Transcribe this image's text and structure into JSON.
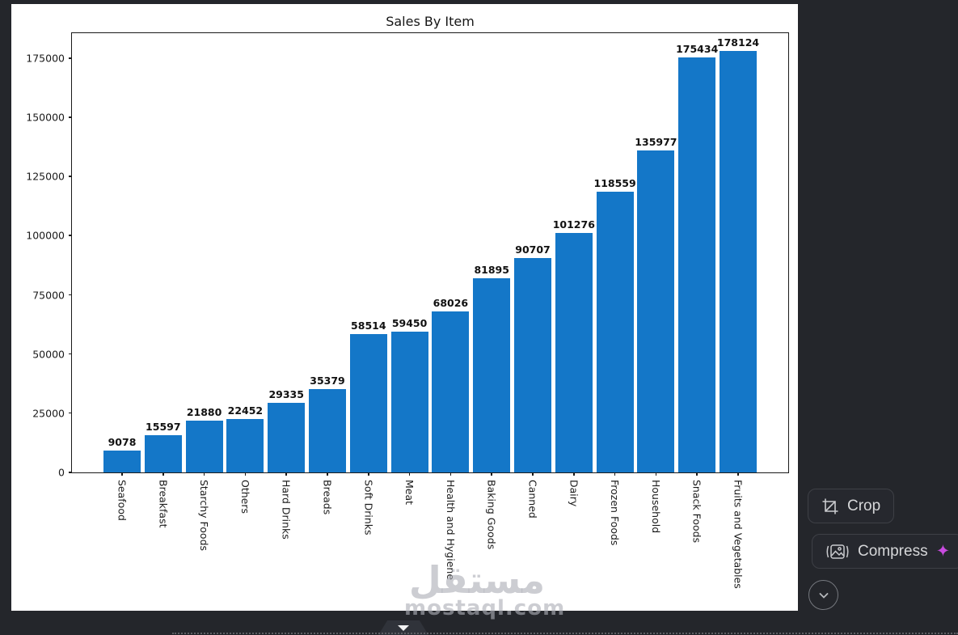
{
  "chart_data": {
    "type": "bar",
    "title": "Sales By Item",
    "categories": [
      "Seafood",
      "Breakfast",
      "Starchy Foods",
      "Others",
      "Hard Drinks",
      "Breads",
      "Soft Drinks",
      "Meat",
      "Health and Hygiene",
      "Baking Goods",
      "Canned",
      "Dairy",
      "Frozen Foods",
      "Household",
      "Snack Foods",
      "Fruits and Vegetables"
    ],
    "values": [
      9078,
      15597,
      21880,
      22452,
      29335,
      35379,
      58514,
      59450,
      68026,
      81895,
      90707,
      101276,
      118559,
      135977,
      175434,
      178124
    ],
    "value_labels": [
      "9078",
      "15597",
      "21880",
      "22452",
      "29335",
      "35379",
      "58514",
      "59450",
      "68026",
      "81895",
      "90707",
      "101276",
      "118559",
      "135977",
      "175434",
      "178124"
    ],
    "yticks": [
      0,
      25000,
      50000,
      75000,
      100000,
      125000,
      150000,
      175000
    ],
    "ytick_labels": [
      "0",
      "25000",
      "50000",
      "75000",
      "100000",
      "125000",
      "150000",
      "175000"
    ],
    "xlabel": "",
    "ylabel": "",
    "ylim": [
      0,
      186280
    ],
    "grid": false,
    "legend": false,
    "bar_color": "#1477c8"
  },
  "toolbar": {
    "crop_label": "Crop",
    "compress_label": "Compress",
    "sparkle_icon": "✦",
    "sparkle_color": "#c94be0",
    "chevron_icon": "chevron-down"
  },
  "watermark": {
    "arabic_text": "مستقل",
    "domain_text": "mostaql.com"
  },
  "colors": {
    "page_background": "#24262b",
    "figure_background": "#ffffff",
    "bar": "#1477c8",
    "button_background": "#26282e",
    "button_border": "#3e4046",
    "button_text": "#d6d7d9"
  }
}
